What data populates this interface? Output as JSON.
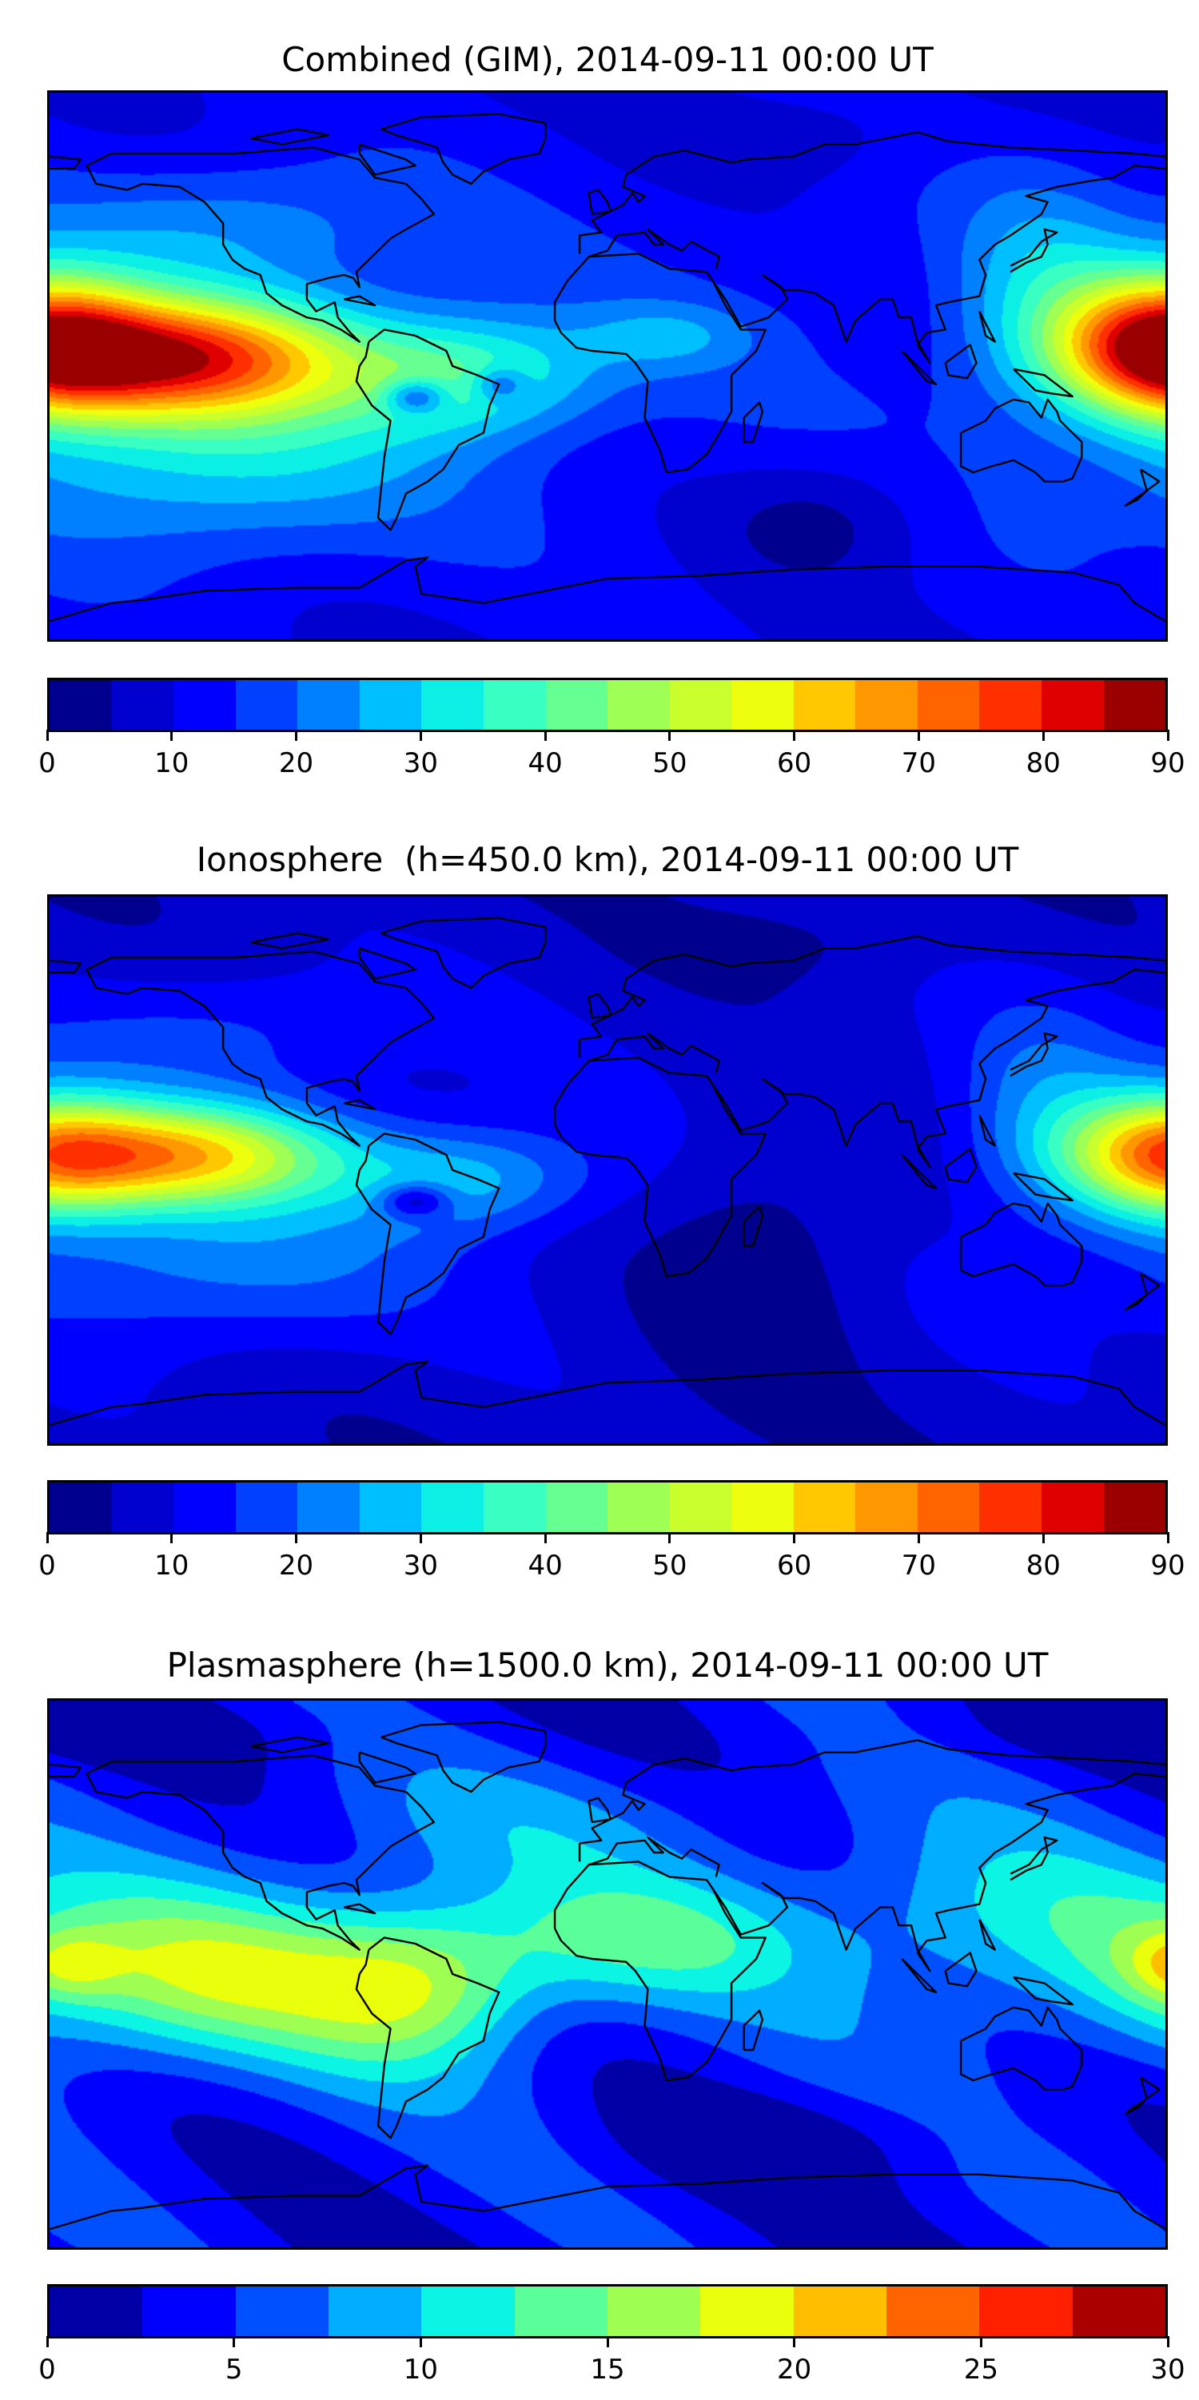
{
  "chart_data": [
    {
      "type": "heatmap",
      "title": "Combined (GIM), 2014-09-11 00:00 UT",
      "xlabel": "",
      "ylabel": "",
      "lon_range": [
        -180,
        180
      ],
      "lat_range": [
        -90,
        90
      ],
      "colorbar": {
        "vmin": 0,
        "vmax": 90,
        "step": 5,
        "ticks": [
          0,
          10,
          20,
          30,
          40,
          50,
          60,
          70,
          80,
          90
        ],
        "tick_labels": [
          "0",
          "10",
          "20",
          "30",
          "40",
          "50",
          "60",
          "70",
          "80",
          "90"
        ],
        "colors": [
          "#00008f",
          "#0000cf",
          "#0000ff",
          "#0040ff",
          "#0080ff",
          "#00bfff",
          "#0cefe4",
          "#3affc2",
          "#66ff92",
          "#9eff55",
          "#c8ff2c",
          "#eeff0e",
          "#ffc800",
          "#ff9800",
          "#ff6400",
          "#ff3000",
          "#df0000",
          "#9a0000"
        ]
      },
      "field": {
        "base": 14,
        "blobs": [
          {
            "lon": -140,
            "lat": 3,
            "amp": 62,
            "slon": 40,
            "slat": 14
          },
          {
            "lon": 178,
            "lat": 8,
            "amp": 50,
            "slon": 22,
            "slat": 16
          },
          {
            "lon": -45,
            "lat": -3,
            "amp": 24,
            "slon": 30,
            "slat": 14
          },
          {
            "lon": 140,
            "lat": 25,
            "amp": 14,
            "slon": 20,
            "slat": 25
          },
          {
            "lon": -130,
            "lat": -30,
            "amp": 18,
            "slon": 50,
            "slat": 22
          },
          {
            "lon": -120,
            "lat": 45,
            "amp": 12,
            "slon": 40,
            "slat": 15
          },
          {
            "lon": -62,
            "lat": -10,
            "amp": -20,
            "slon": 7,
            "slat": 4
          },
          {
            "lon": -35,
            "lat": -6,
            "amp": -14,
            "slon": 6,
            "slat": 4
          },
          {
            "lon": 70,
            "lat": -50,
            "amp": -9,
            "slon": 25,
            "slat": 15
          },
          {
            "lon": 20,
            "lat": 10,
            "amp": 10,
            "slon": 20,
            "slat": 8
          },
          {
            "lon": 60,
            "lat": 75,
            "amp": -5,
            "slon": 30,
            "slat": 10
          }
        ]
      }
    },
    {
      "type": "heatmap",
      "title": "Ionosphere  (h=450.0 km), 2014-09-11 00:00 UT",
      "xlabel": "",
      "ylabel": "",
      "lon_range": [
        -180,
        180
      ],
      "lat_range": [
        -90,
        90
      ],
      "colorbar": {
        "vmin": 0,
        "vmax": 90,
        "step": 5,
        "ticks": [
          0,
          10,
          20,
          30,
          40,
          50,
          60,
          70,
          80,
          90
        ],
        "tick_labels": [
          "0",
          "10",
          "20",
          "30",
          "40",
          "50",
          "60",
          "70",
          "80",
          "90"
        ],
        "colors": [
          "#00008f",
          "#0000cf",
          "#0000ff",
          "#0040ff",
          "#0080ff",
          "#00bfff",
          "#0cefe4",
          "#3affc2",
          "#66ff92",
          "#9eff55",
          "#c8ff2c",
          "#eeff0e",
          "#ffc800",
          "#ff9800",
          "#ff6400",
          "#ff3000",
          "#df0000",
          "#9a0000"
        ]
      },
      "field": {
        "base": 9,
        "blobs": [
          {
            "lon": -140,
            "lat": 5,
            "amp": 50,
            "slon": 38,
            "slat": 12
          },
          {
            "lon": 178,
            "lat": 5,
            "amp": 36,
            "slon": 22,
            "slat": 15
          },
          {
            "lon": -45,
            "lat": -3,
            "amp": 18,
            "slon": 28,
            "slat": 12
          },
          {
            "lon": 140,
            "lat": 20,
            "amp": 12,
            "slon": 20,
            "slat": 25
          },
          {
            "lon": -130,
            "lat": -30,
            "amp": 14,
            "slon": 50,
            "slat": 20
          },
          {
            "lon": -120,
            "lat": 45,
            "amp": 9,
            "slon": 40,
            "slat": 15
          },
          {
            "lon": -62,
            "lat": -10,
            "amp": -18,
            "slon": 8,
            "slat": 4
          },
          {
            "lon": 50,
            "lat": -30,
            "amp": -8,
            "slon": 25,
            "slat": 30
          },
          {
            "lon": 60,
            "lat": 75,
            "amp": -4,
            "slon": 30,
            "slat": 10
          }
        ]
      }
    },
    {
      "type": "heatmap",
      "title": "Plasmasphere (h=1500.0 km), 2014-09-11 00:00 UT",
      "xlabel": "",
      "ylabel": "",
      "lon_range": [
        -180,
        180
      ],
      "lat_range": [
        -90,
        90
      ],
      "colorbar": {
        "vmin": 0,
        "vmax": 30,
        "step": 2.5,
        "ticks": [
          0,
          5,
          10,
          15,
          20,
          25,
          30
        ],
        "tick_labels": [
          "0",
          "5",
          "10",
          "15",
          "20",
          "25",
          "30"
        ],
        "colors": [
          "#0000a6",
          "#0000ff",
          "#0050ff",
          "#00adff",
          "#0cf4e4",
          "#5aff9a",
          "#9eff52",
          "#eaff0c",
          "#ffbe00",
          "#ff6400",
          "#ff2000",
          "#aa0000"
        ]
      },
      "field": {
        "base": 4.5,
        "blobs": [
          {
            "lon": -130,
            "lat": 0,
            "amp": 12,
            "slon": 60,
            "slat": 20
          },
          {
            "lon": -175,
            "lat": 3,
            "amp": 6,
            "slon": 12,
            "slat": 8
          },
          {
            "lon": -60,
            "lat": -5,
            "amp": 8,
            "slon": 25,
            "slat": 18
          },
          {
            "lon": 10,
            "lat": 12,
            "amp": 7,
            "slon": 40,
            "slat": 15
          },
          {
            "lon": 120,
            "lat": 20,
            "amp": 5,
            "slon": 40,
            "slat": 20
          },
          {
            "lon": -20,
            "lat": 50,
            "amp": 3,
            "slon": 60,
            "slat": 15
          },
          {
            "lon": 60,
            "lat": -55,
            "amp": -3,
            "slon": 40,
            "slat": 12
          },
          {
            "lon": 180,
            "lat": 80,
            "amp": -2,
            "slon": 60,
            "slat": 8
          }
        ]
      }
    }
  ]
}
